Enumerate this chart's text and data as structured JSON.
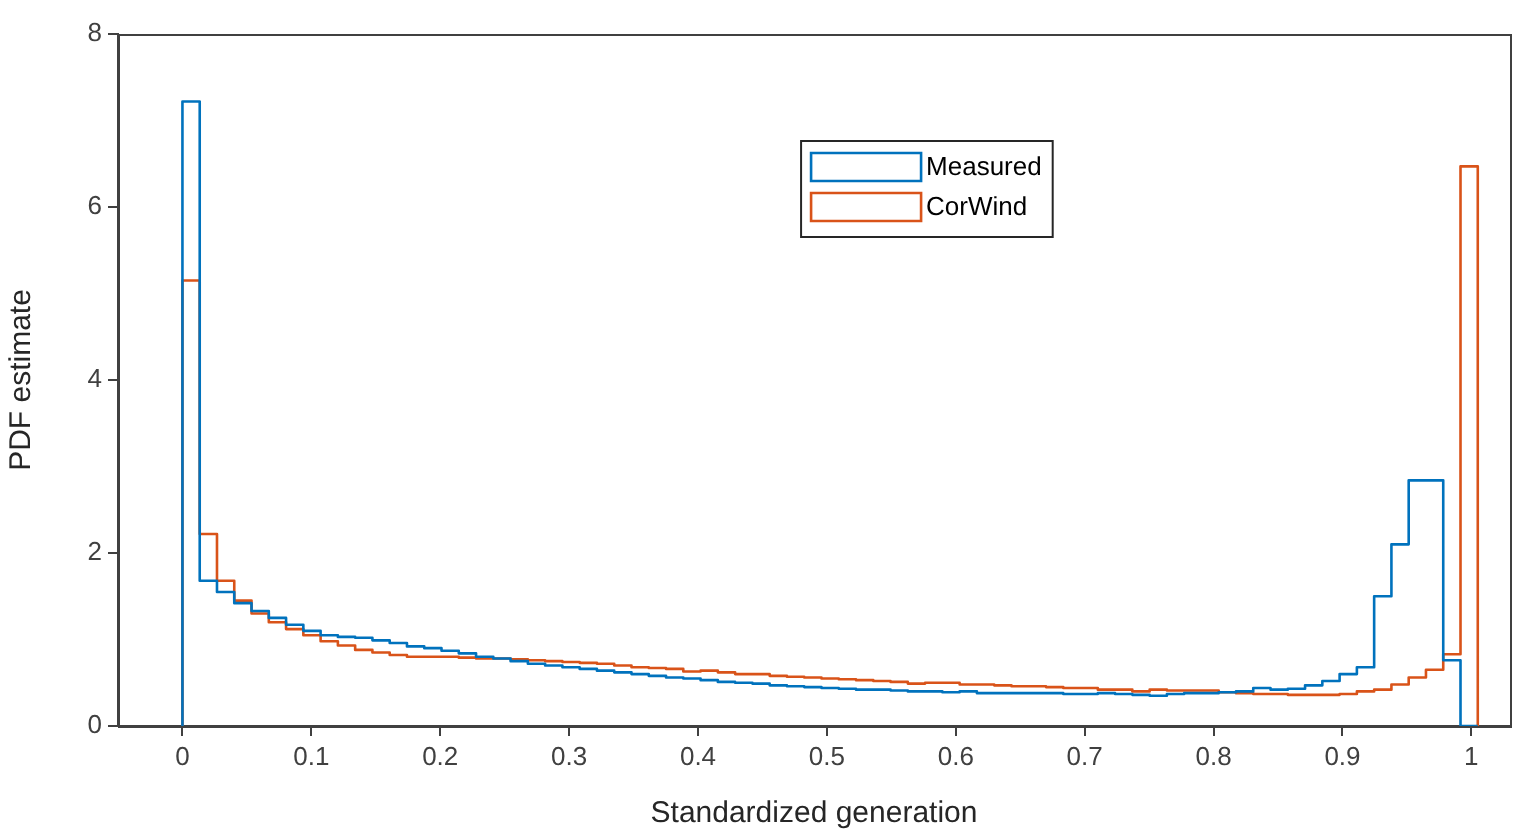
{
  "chart_data": {
    "type": "histogram",
    "xlabel": "Standardized generation",
    "ylabel": "PDF estimate",
    "bins": [
      0,
      0.0134,
      0.0268,
      0.0402,
      0.0536,
      0.067,
      0.0804,
      0.0938,
      0.1072,
      0.1206,
      0.134,
      0.1474,
      0.1608,
      0.1742,
      0.1876,
      0.201,
      0.2144,
      0.2278,
      0.2412,
      0.2546,
      0.268,
      0.2814,
      0.2948,
      0.3082,
      0.3216,
      0.335,
      0.3484,
      0.3618,
      0.3752,
      0.3886,
      0.402,
      0.4154,
      0.4288,
      0.4422,
      0.4556,
      0.469,
      0.4824,
      0.4958,
      0.5092,
      0.5226,
      0.536,
      0.5494,
      0.5628,
      0.5762,
      0.5896,
      0.603,
      0.6164,
      0.6298,
      0.6432,
      0.6566,
      0.67,
      0.6834,
      0.6968,
      0.7102,
      0.7236,
      0.737,
      0.7504,
      0.7638,
      0.7772,
      0.7906,
      0.804,
      0.8174,
      0.8308,
      0.8442,
      0.8576,
      0.871,
      0.8844,
      0.8978,
      0.9112,
      0.9246,
      0.938,
      0.9514,
      0.9648,
      0.9782,
      0.9916,
      1.005
    ],
    "series": [
      {
        "name": "Measured",
        "color": "#0072bd",
        "values": [
          7.22,
          1.68,
          1.55,
          1.42,
          1.33,
          1.25,
          1.17,
          1.1,
          1.05,
          1.03,
          1.02,
          0.99,
          0.96,
          0.92,
          0.9,
          0.87,
          0.84,
          0.8,
          0.78,
          0.75,
          0.72,
          0.7,
          0.68,
          0.66,
          0.64,
          0.62,
          0.6,
          0.58,
          0.56,
          0.55,
          0.53,
          0.51,
          0.5,
          0.49,
          0.47,
          0.46,
          0.45,
          0.44,
          0.43,
          0.42,
          0.42,
          0.41,
          0.4,
          0.4,
          0.39,
          0.4,
          0.38,
          0.38,
          0.38,
          0.38,
          0.38,
          0.37,
          0.37,
          0.38,
          0.37,
          0.36,
          0.35,
          0.37,
          0.38,
          0.38,
          0.39,
          0.4,
          0.44,
          0.42,
          0.43,
          0.47,
          0.52,
          0.6,
          0.68,
          1.5,
          2.1,
          2.84,
          2.84,
          0.76,
          0
        ]
      },
      {
        "name": "CorWind",
        "color": "#d95319",
        "values": [
          5.15,
          2.22,
          1.68,
          1.45,
          1.3,
          1.2,
          1.12,
          1.05,
          0.98,
          0.93,
          0.88,
          0.85,
          0.82,
          0.8,
          0.8,
          0.8,
          0.79,
          0.78,
          0.78,
          0.77,
          0.76,
          0.75,
          0.74,
          0.73,
          0.72,
          0.7,
          0.68,
          0.67,
          0.66,
          0.63,
          0.64,
          0.62,
          0.6,
          0.6,
          0.58,
          0.57,
          0.56,
          0.55,
          0.54,
          0.53,
          0.52,
          0.51,
          0.49,
          0.5,
          0.5,
          0.48,
          0.48,
          0.47,
          0.46,
          0.46,
          0.45,
          0.44,
          0.44,
          0.42,
          0.42,
          0.4,
          0.42,
          0.41,
          0.41,
          0.41,
          0.39,
          0.38,
          0.37,
          0.37,
          0.36,
          0.36,
          0.36,
          0.37,
          0.4,
          0.42,
          0.48,
          0.56,
          0.65,
          0.83,
          6.47
        ]
      }
    ],
    "xlim": [
      -0.05,
      1.03
    ],
    "xticks": [
      0,
      0.1,
      0.2,
      0.3,
      0.4,
      0.5,
      0.6,
      0.7,
      0.8,
      0.9,
      1
    ],
    "ylim": [
      0,
      8
    ],
    "yticks": [
      0,
      2,
      4,
      6,
      8
    ],
    "legend": "top"
  }
}
